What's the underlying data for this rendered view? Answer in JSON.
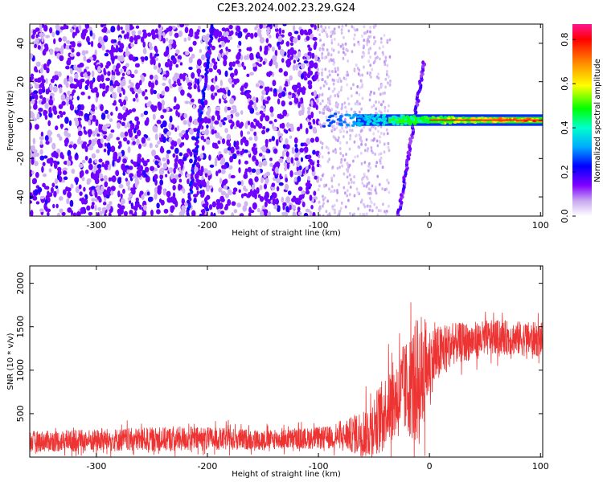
{
  "title": "C2E3.2024.002.23.29.G24",
  "chart_data": [
    {
      "type": "heatmap",
      "xlabel": "Height of straight line (km)",
      "ylabel": "Frequency (Hz)",
      "xlim": [
        -360,
        102
      ],
      "ylim": [
        -50,
        50
      ],
      "xticks": [
        -300,
        -200,
        -100,
        0,
        100
      ],
      "yticks": [
        -40,
        -20,
        0,
        20,
        40
      ],
      "colorbar": {
        "label": "Normalized spectral amplitude",
        "range": [
          0,
          0.87
        ],
        "ticks": [
          "0.0",
          "0.2",
          "0.4",
          "0.6",
          "0.8"
        ],
        "tick_values": [
          0.0,
          0.2,
          0.4,
          0.6,
          0.8
        ]
      },
      "features": [
        {
          "kind": "noise-field",
          "x_range": [
            -360,
            -100
          ],
          "y_range": [
            -50,
            50
          ],
          "amplitude": 0.15
        },
        {
          "kind": "sparse-noise",
          "x_range": [
            -100,
            -35
          ],
          "y_range": [
            -50,
            50
          ],
          "amplitude": 0.05
        },
        {
          "kind": "diagonal-streak",
          "from": [
            -218,
            -50
          ],
          "to": [
            -195,
            50
          ],
          "amplitude": 0.2
        },
        {
          "kind": "diagonal-streak",
          "from": [
            -28,
            -50
          ],
          "to": [
            -5,
            30
          ],
          "amplitude": 0.15
        },
        {
          "kind": "carrier-band",
          "x_range": [
            -95,
            102
          ],
          "y_center": 0,
          "half_width": 3,
          "amplitude": 0.85
        }
      ]
    },
    {
      "type": "line",
      "xlabel": "Height of straight line (km)",
      "ylabel": "SNR (10 * v/v)",
      "xlim": [
        -360,
        102
      ],
      "ylim": [
        0,
        2200
      ],
      "xticks": [
        -300,
        -200,
        -100,
        0,
        100
      ],
      "yticks": [
        500,
        1000,
        1500,
        2000
      ],
      "color": "#ee3333",
      "envelope": [
        {
          "x": -360,
          "base": 180,
          "amp": 150
        },
        {
          "x": -220,
          "base": 210,
          "amp": 180
        },
        {
          "x": -140,
          "base": 200,
          "amp": 140
        },
        {
          "x": -80,
          "base": 230,
          "amp": 170
        },
        {
          "x": -55,
          "base": 300,
          "amp": 400
        },
        {
          "x": -40,
          "base": 550,
          "amp": 500
        },
        {
          "x": -20,
          "base": 800,
          "amp": 700
        },
        {
          "x": -8,
          "base": 900,
          "amp": 1000
        },
        {
          "x": 0,
          "base": 1100,
          "amp": 500
        },
        {
          "x": 20,
          "base": 1300,
          "amp": 300
        },
        {
          "x": 60,
          "base": 1380,
          "amp": 250
        },
        {
          "x": 102,
          "base": 1350,
          "amp": 250
        }
      ]
    }
  ]
}
